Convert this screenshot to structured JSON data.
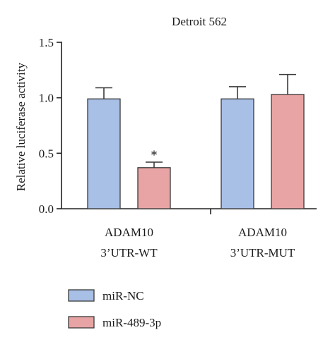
{
  "chart_data": {
    "type": "bar",
    "title": "Detroit 562",
    "ylabel": "Relative luciferase activity",
    "ylim": [
      0,
      1.5
    ],
    "yticks": [
      "0.0",
      "0.5",
      "1.0",
      "1.5"
    ],
    "categories": [
      [
        "ADAM10",
        "3’UTR-WT"
      ],
      [
        "ADAM10",
        "3’UTR-MUT"
      ]
    ],
    "series": [
      {
        "name": "miR-NC",
        "color": "#a8bfe6",
        "values": [
          0.99,
          0.99
        ],
        "errors": [
          0.1,
          0.11
        ]
      },
      {
        "name": "miR-489-3p",
        "color": "#e8a4a4",
        "values": [
          0.37,
          1.03
        ],
        "errors": [
          0.05,
          0.18
        ]
      }
    ],
    "annotations": [
      {
        "category_index": 0,
        "series_index": 1,
        "text": "*"
      }
    ],
    "legend_position": "bottom-left",
    "grid": false
  }
}
